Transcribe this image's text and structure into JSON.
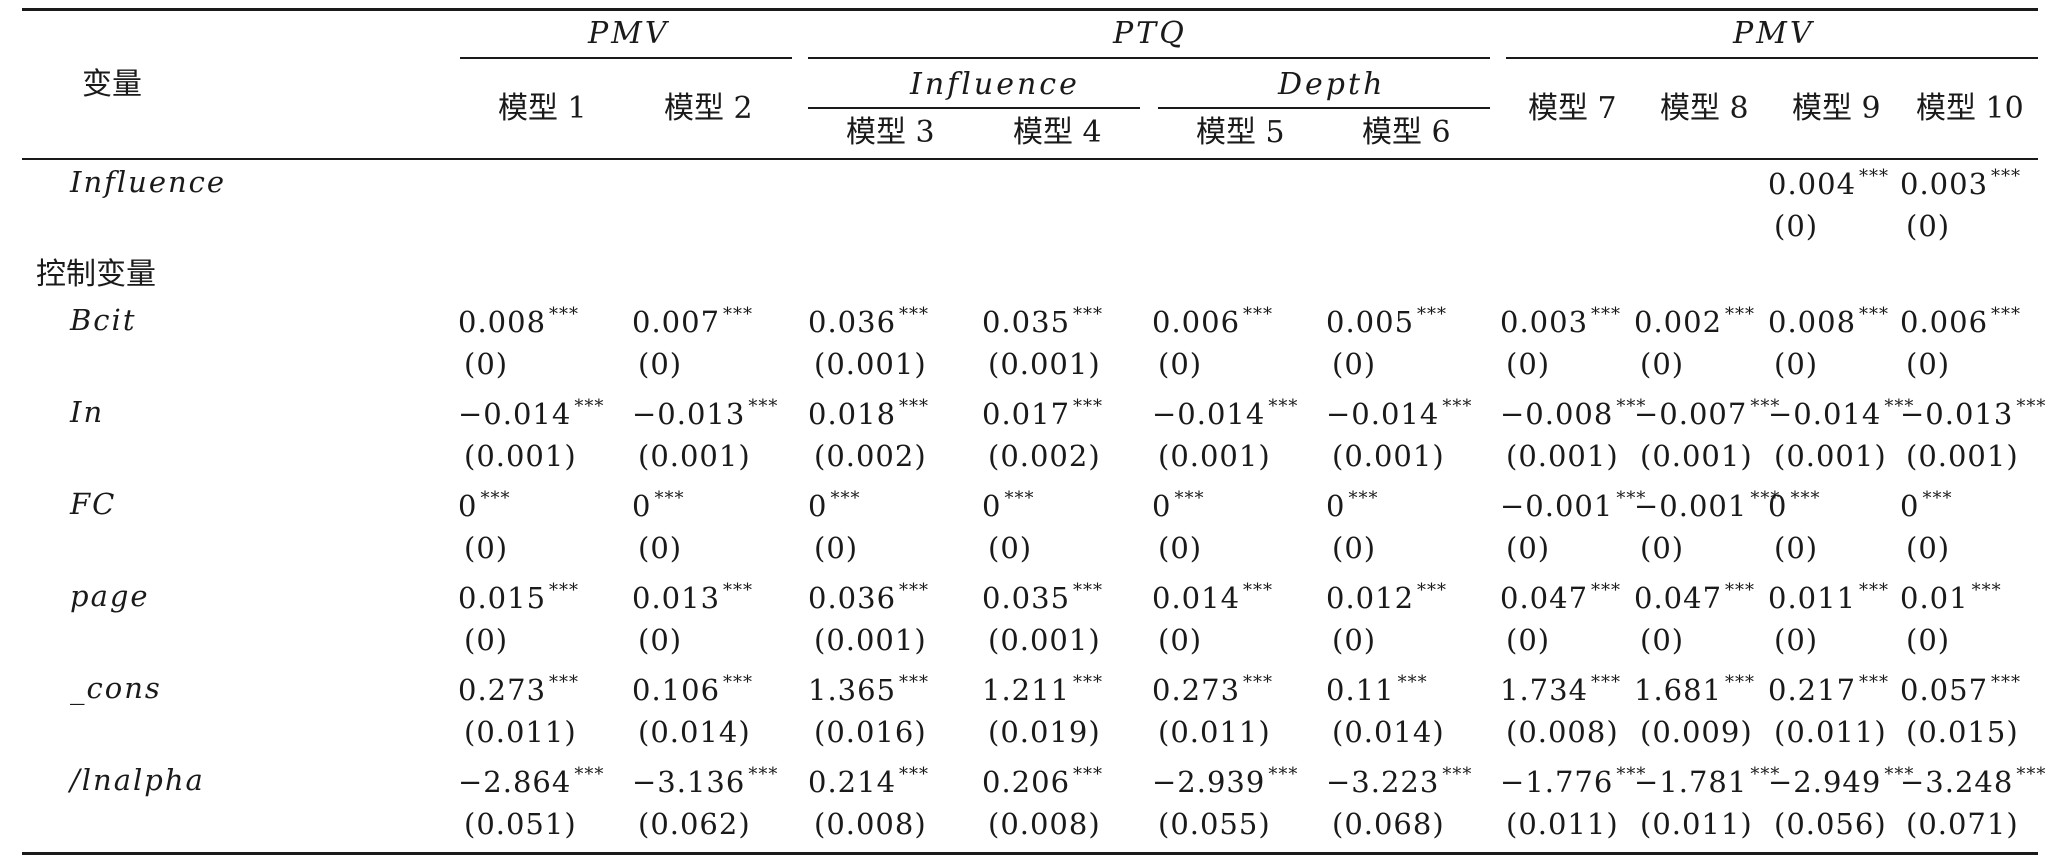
{
  "header": {
    "variable_label": "变量",
    "groups": [
      "PMV",
      "PTQ",
      "PMV"
    ],
    "subgroups": [
      "Influence",
      "Depth"
    ],
    "models": [
      "模型 1",
      "模型 2",
      "模型 3",
      "模型 4",
      "模型 5",
      "模型 6",
      "模型 7",
      "模型 8",
      "模型 9",
      "模型 10"
    ]
  },
  "control_label": "控制变量",
  "rows": [
    {
      "name": "Influence",
      "values": [
        "",
        "",
        "",
        "",
        "",
        "",
        "",
        "",
        "0.004",
        "0.003"
      ],
      "stars": [
        "",
        "",
        "",
        "",
        "",
        "",
        "",
        "",
        "***",
        "***"
      ],
      "se": [
        "",
        "",
        "",
        "",
        "",
        "",
        "",
        "",
        "(0)",
        "(0)"
      ]
    },
    {
      "name": "Bcit",
      "values": [
        "0.008",
        "0.007",
        "0.036",
        "0.035",
        "0.006",
        "0.005",
        "0.003",
        "0.002",
        "0.008",
        "0.006"
      ],
      "stars": [
        "***",
        "***",
        "***",
        "***",
        "***",
        "***",
        "***",
        "***",
        "***",
        "***"
      ],
      "se": [
        "(0)",
        "(0)",
        "(0.001)",
        "(0.001)",
        "(0)",
        "(0)",
        "(0)",
        "(0)",
        "(0)",
        "(0)"
      ]
    },
    {
      "name": "In",
      "values": [
        "−0.014",
        "−0.013",
        "0.018",
        "0.017",
        "−0.014",
        "−0.014",
        "−0.008",
        "−0.007",
        "−0.014",
        "−0.013"
      ],
      "stars": [
        "***",
        "***",
        "***",
        "***",
        "***",
        "***",
        "***",
        "***",
        "***",
        "***"
      ],
      "se": [
        "(0.001)",
        "(0.001)",
        "(0.002)",
        "(0.002)",
        "(0.001)",
        "(0.001)",
        "(0.001)",
        "(0.001)",
        "(0.001)",
        "(0.001)"
      ]
    },
    {
      "name": "FC",
      "values": [
        "0",
        "0",
        "0",
        "0",
        "0",
        "0",
        "−0.001",
        "−0.001",
        "0",
        "0"
      ],
      "stars": [
        "***",
        "***",
        "***",
        "***",
        "***",
        "***",
        "***",
        "***",
        "***",
        "***"
      ],
      "se": [
        "(0)",
        "(0)",
        "(0)",
        "(0)",
        "(0)",
        "(0)",
        "(0)",
        "(0)",
        "(0)",
        "(0)"
      ]
    },
    {
      "name": "page",
      "values": [
        "0.015",
        "0.013",
        "0.036",
        "0.035",
        "0.014",
        "0.012",
        "0.047",
        "0.047",
        "0.011",
        "0.01"
      ],
      "stars": [
        "***",
        "***",
        "***",
        "***",
        "***",
        "***",
        "***",
        "***",
        "***",
        "***"
      ],
      "se": [
        "(0)",
        "(0)",
        "(0.001)",
        "(0.001)",
        "(0)",
        "(0)",
        "(0)",
        "(0)",
        "(0)",
        "(0)"
      ]
    },
    {
      "name": "_cons",
      "values": [
        "0.273",
        "0.106",
        "1.365",
        "1.211",
        "0.273",
        "0.11",
        "1.734",
        "1.681",
        "0.217",
        "0.057"
      ],
      "stars": [
        "***",
        "***",
        "***",
        "***",
        "***",
        "***",
        "***",
        "***",
        "***",
        "***"
      ],
      "se": [
        "(0.011)",
        "(0.014)",
        "(0.016)",
        "(0.019)",
        "(0.011)",
        "(0.014)",
        "(0.008)",
        "(0.009)",
        "(0.011)",
        "(0.015)"
      ]
    },
    {
      "name": "/lnalpha",
      "values": [
        "−2.864",
        "−3.136",
        "0.214",
        "0.206",
        "−2.939",
        "−3.223",
        "−1.776",
        "−1.781",
        "−2.949",
        "−3.248"
      ],
      "stars": [
        "***",
        "***",
        "***",
        "***",
        "***",
        "***",
        "***",
        "***",
        "***",
        "***"
      ],
      "se": [
        "(0.051)",
        "(0.062)",
        "(0.008)",
        "(0.008)",
        "(0.055)",
        "(0.068)",
        "(0.011)",
        "(0.011)",
        "(0.056)",
        "(0.071)"
      ]
    }
  ]
}
